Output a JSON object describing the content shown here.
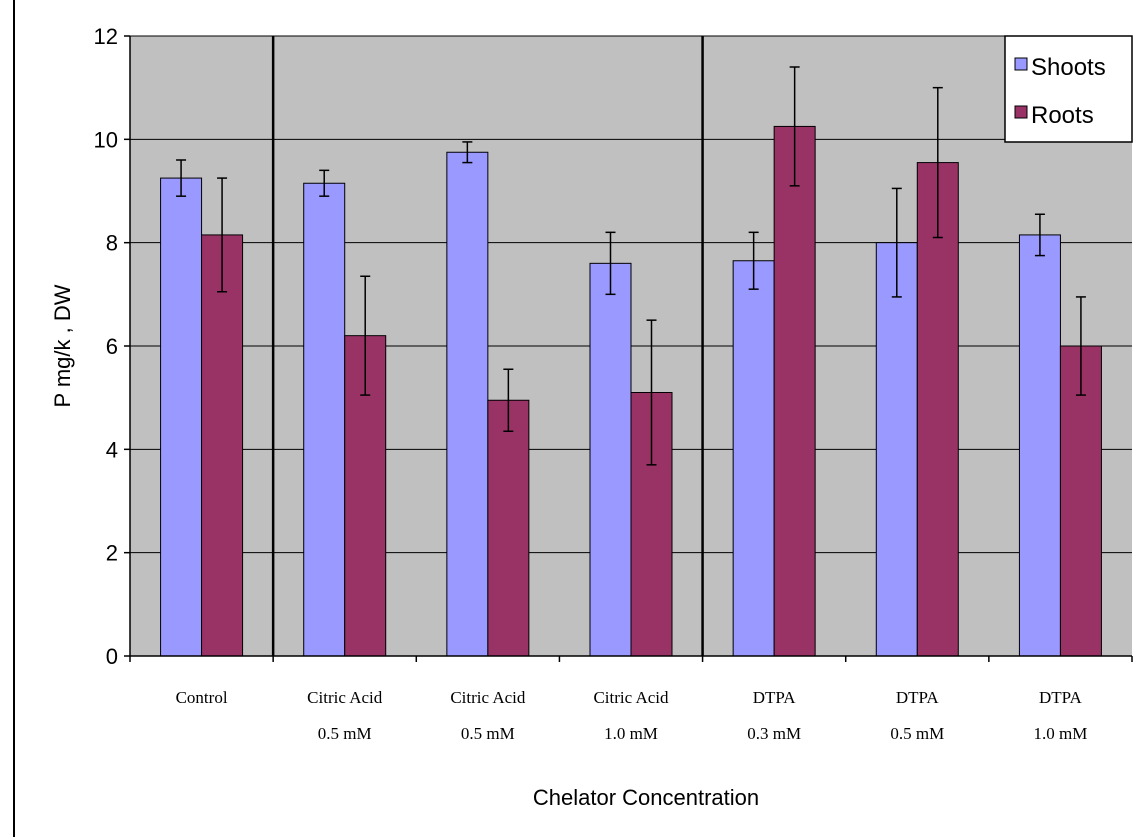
{
  "chart_data": {
    "type": "bar",
    "ylabel": "P mg/k , DW",
    "xlabel": "Chelator Concentration",
    "ylim": [
      0,
      12
    ],
    "yticks": [
      "0",
      "2",
      "4",
      "6",
      "8",
      "10",
      "12"
    ],
    "grid": true,
    "legend_position": "top-right",
    "categories": [
      [
        "Control"
      ],
      [
        "Citric Acid",
        "0.5 mM"
      ],
      [
        "Citric Acid",
        "0.5 mM"
      ],
      [
        "Citric Acid",
        "1.0 mM"
      ],
      [
        "DTPA",
        "0.3 mM"
      ],
      [
        "DTPA",
        "0.5 mM"
      ],
      [
        "DTPA",
        "1.0 mM"
      ]
    ],
    "series": [
      {
        "name": "Shoots",
        "color": "#9999ff",
        "values": [
          9.25,
          9.15,
          9.75,
          7.6,
          7.65,
          8.0,
          8.15
        ],
        "errors": [
          0.35,
          0.25,
          0.2,
          0.6,
          0.55,
          1.05,
          0.4
        ]
      },
      {
        "name": "Roots",
        "color": "#993366",
        "values": [
          8.15,
          6.2,
          4.95,
          5.1,
          10.25,
          9.55,
          6.0
        ],
        "errors": [
          1.1,
          1.15,
          0.6,
          1.4,
          1.15,
          1.45,
          0.95
        ]
      }
    ],
    "group_dividers_after": [
      0,
      3
    ],
    "colors": {
      "plot_bg": "#c0c0c0",
      "grid": "#000000",
      "bar_outline": "#000000"
    }
  }
}
